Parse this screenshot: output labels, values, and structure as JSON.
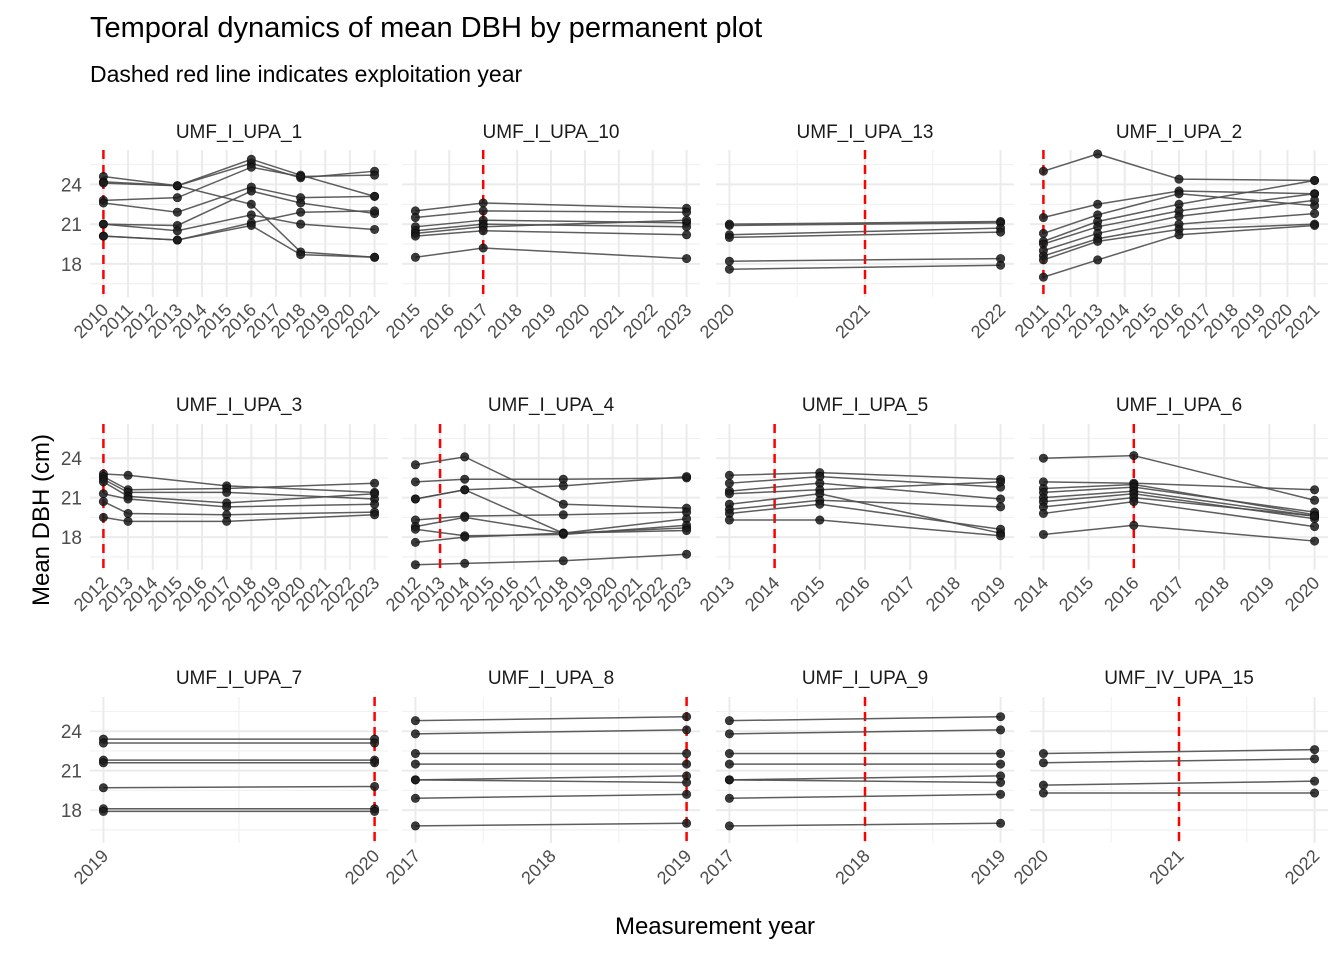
{
  "chart_data": {
    "type": "line",
    "title": "Temporal dynamics of mean DBH by permanent plot",
    "subtitle": "Dashed red line indicates exploitation year",
    "xlabel": "Measurement year",
    "ylabel": "Mean DBH (cm)",
    "ylim": [
      15.5,
      26.6
    ],
    "yticks": [
      18,
      21,
      24
    ],
    "grid": true,
    "legend": "none",
    "colors": {
      "line": "#4d4d4d",
      "point": "#1a1a1a",
      "exploitation_line": "#ff0000",
      "grid": "#ebebeb"
    },
    "panels": [
      {
        "name": "UMF_I_UPA_1",
        "xlim": [
          2010,
          2021
        ],
        "xticks": [
          2010,
          2011,
          2012,
          2013,
          2014,
          2015,
          2016,
          2017,
          2018,
          2019,
          2020,
          2021
        ],
        "exploitation_year": 2010,
        "x": [
          2010,
          2013,
          2016,
          2018,
          2021
        ],
        "series": [
          [
            24.6,
            23.9,
            22.5,
            18.9,
            18.5
          ],
          [
            24.2,
            23.9,
            25.6,
            24.5,
            25.0
          ],
          [
            24.1,
            23.9,
            25.9,
            24.7,
            23.1
          ],
          [
            22.8,
            23.0,
            25.3,
            24.6,
            24.7
          ],
          [
            22.6,
            21.9,
            23.8,
            23.0,
            23.1
          ],
          [
            21.0,
            20.9,
            23.5,
            22.6,
            21.8
          ],
          [
            21.0,
            20.5,
            21.7,
            21.0,
            20.6
          ],
          [
            20.1,
            19.8,
            21.1,
            21.9,
            22.0
          ],
          [
            20.1,
            19.8,
            20.9,
            18.7,
            18.5
          ]
        ]
      },
      {
        "name": "UMF_I_UPA_10",
        "xlim": [
          2015,
          2023
        ],
        "xticks": [
          2015,
          2016,
          2017,
          2018,
          2019,
          2020,
          2021,
          2022,
          2023
        ],
        "exploitation_year": 2017,
        "x": [
          2015,
          2017,
          2023
        ],
        "series": [
          [
            22.0,
            22.6,
            22.2
          ],
          [
            21.5,
            22.0,
            21.9
          ],
          [
            20.8,
            21.3,
            21.1
          ],
          [
            20.5,
            21.0,
            20.8
          ],
          [
            20.3,
            20.8,
            21.3
          ],
          [
            20.1,
            20.5,
            20.2
          ],
          [
            18.5,
            19.2,
            18.4
          ]
        ]
      },
      {
        "name": "UMF_I_UPA_13",
        "xlim": [
          2020,
          2022
        ],
        "xticks": [
          2020,
          2021,
          2022
        ],
        "exploitation_year": 2021,
        "x": [
          2020,
          2022
        ],
        "series": [
          [
            21.0,
            21.2
          ],
          [
            20.9,
            21.1
          ],
          [
            20.2,
            20.7
          ],
          [
            20.0,
            20.4
          ],
          [
            18.2,
            18.4
          ],
          [
            17.6,
            17.9
          ]
        ]
      },
      {
        "name": "UMF_I_UPA_2",
        "xlim": [
          2011,
          2021
        ],
        "xticks": [
          2011,
          2012,
          2013,
          2014,
          2015,
          2016,
          2017,
          2018,
          2019,
          2020,
          2021
        ],
        "exploitation_year": 2011,
        "x": [
          2011,
          2013,
          2016,
          2021
        ],
        "series": [
          [
            25.0,
            26.3,
            24.4,
            24.3
          ],
          [
            21.5,
            22.5,
            23.5,
            23.3
          ],
          [
            20.3,
            21.7,
            23.3,
            22.4
          ],
          [
            19.7,
            21.2,
            22.5,
            24.3
          ],
          [
            19.5,
            20.8,
            22.0,
            23.3
          ],
          [
            19.0,
            20.3,
            21.6,
            22.8
          ],
          [
            18.6,
            19.9,
            21.0,
            21.8
          ],
          [
            18.3,
            19.7,
            20.6,
            21.0
          ],
          [
            17.0,
            18.3,
            20.2,
            20.9
          ]
        ]
      },
      {
        "name": "UMF_I_UPA_3",
        "xlim": [
          2012,
          2023
        ],
        "xticks": [
          2012,
          2013,
          2014,
          2015,
          2016,
          2017,
          2018,
          2019,
          2020,
          2021,
          2022,
          2023
        ],
        "exploitation_year": 2012,
        "x": [
          2012,
          2013,
          2017,
          2023
        ],
        "series": [
          [
            22.8,
            22.7,
            21.9,
            21.4
          ],
          [
            22.6,
            21.6,
            21.7,
            22.1
          ],
          [
            22.4,
            21.4,
            21.4,
            20.9
          ],
          [
            22.2,
            21.1,
            20.6,
            21.3
          ],
          [
            21.3,
            20.9,
            20.3,
            20.5
          ],
          [
            20.7,
            19.8,
            19.7,
            19.9
          ],
          [
            19.5,
            19.2,
            19.2,
            19.7
          ]
        ]
      },
      {
        "name": "UMF_I_UPA_4",
        "xlim": [
          2012,
          2023
        ],
        "xticks": [
          2012,
          2013,
          2014,
          2015,
          2016,
          2017,
          2018,
          2019,
          2020,
          2021,
          2022,
          2023
        ],
        "exploitation_year": 2013,
        "x": [
          2012,
          2014,
          2018,
          2023
        ],
        "series": [
          [
            23.5,
            24.1,
            20.5,
            20.2
          ],
          [
            22.2,
            22.4,
            22.4,
            22.5
          ],
          [
            20.9,
            21.6,
            21.9,
            22.6
          ],
          [
            20.9,
            21.6,
            18.3,
            19.4
          ],
          [
            19.3,
            19.6,
            19.7,
            19.9
          ],
          [
            18.8,
            19.5,
            18.3,
            18.7
          ],
          [
            18.6,
            18.1,
            18.2,
            18.9
          ],
          [
            17.6,
            18.0,
            18.3,
            18.5
          ],
          [
            15.9,
            16.0,
            16.2,
            16.7
          ]
        ]
      },
      {
        "name": "UMF_I_UPA_5",
        "xlim": [
          2013,
          2019
        ],
        "xticks": [
          2013,
          2014,
          2015,
          2016,
          2017,
          2018,
          2019
        ],
        "exploitation_year": 2014,
        "x": [
          2013,
          2015,
          2019
        ],
        "series": [
          [
            22.7,
            22.9,
            22.4
          ],
          [
            22.1,
            22.6,
            21.8
          ],
          [
            21.5,
            22.1,
            20.9
          ],
          [
            21.3,
            21.6,
            22.2
          ],
          [
            20.5,
            21.3,
            18.3
          ],
          [
            20.1,
            20.8,
            20.3
          ],
          [
            19.8,
            20.5,
            18.6
          ],
          [
            19.3,
            19.3,
            18.1
          ]
        ]
      },
      {
        "name": "UMF_I_UPA_6",
        "xlim": [
          2014,
          2020
        ],
        "xticks": [
          2014,
          2015,
          2016,
          2017,
          2018,
          2019,
          2020
        ],
        "exploitation_year": 2016,
        "x": [
          2014,
          2016,
          2020
        ],
        "series": [
          [
            24.0,
            24.2,
            20.8
          ],
          [
            22.2,
            22.1,
            21.6
          ],
          [
            21.7,
            22.0,
            19.7
          ],
          [
            21.4,
            21.8,
            19.9
          ],
          [
            21.0,
            21.5,
            19.6
          ],
          [
            20.7,
            21.3,
            19.4
          ],
          [
            20.3,
            21.0,
            19.6
          ],
          [
            19.8,
            20.7,
            18.8
          ],
          [
            18.2,
            18.9,
            17.7
          ]
        ]
      },
      {
        "name": "UMF_I_UPA_7",
        "xlim": [
          2019,
          2020
        ],
        "xticks": [
          2019,
          2020
        ],
        "exploitation_year": 2020,
        "x": [
          2019,
          2020
        ],
        "series": [
          [
            23.4,
            23.4
          ],
          [
            23.1,
            23.1
          ],
          [
            21.8,
            21.8
          ],
          [
            21.6,
            21.6
          ],
          [
            19.7,
            19.8
          ],
          [
            18.1,
            18.1
          ],
          [
            17.9,
            17.9
          ]
        ]
      },
      {
        "name": "UMF_I_UPA_8",
        "xlim": [
          2017,
          2019
        ],
        "xticks": [
          2017,
          2018,
          2019
        ],
        "exploitation_year": 2019,
        "x": [
          2017,
          2019
        ],
        "series": [
          [
            24.8,
            25.1
          ],
          [
            23.8,
            24.1
          ],
          [
            22.3,
            22.3
          ],
          [
            21.5,
            21.5
          ],
          [
            20.3,
            20.6
          ],
          [
            20.3,
            20.1
          ],
          [
            18.9,
            19.2
          ],
          [
            16.8,
            17.0
          ]
        ]
      },
      {
        "name": "UMF_I_UPA_9",
        "xlim": [
          2017,
          2019
        ],
        "xticks": [
          2017,
          2018,
          2019
        ],
        "exploitation_year": 2018,
        "x": [
          2017,
          2019
        ],
        "series": [
          [
            24.8,
            25.1
          ],
          [
            23.8,
            24.1
          ],
          [
            22.3,
            22.3
          ],
          [
            21.5,
            21.5
          ],
          [
            20.3,
            20.6
          ],
          [
            20.3,
            20.1
          ],
          [
            18.9,
            19.2
          ],
          [
            16.8,
            17.0
          ]
        ]
      },
      {
        "name": "UMF_IV_UPA_15",
        "xlim": [
          2020,
          2022
        ],
        "xticks": [
          2020,
          2021,
          2022
        ],
        "exploitation_year": 2021,
        "x": [
          2020,
          2022
        ],
        "series": [
          [
            22.3,
            22.6
          ],
          [
            21.6,
            21.9
          ],
          [
            19.9,
            20.2
          ],
          [
            19.3,
            19.3
          ]
        ]
      }
    ]
  }
}
